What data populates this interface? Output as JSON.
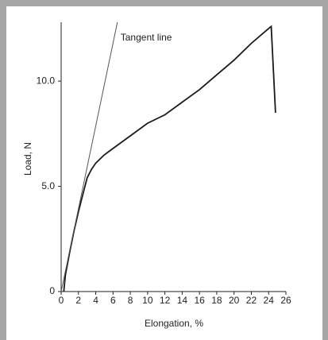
{
  "chart_data": {
    "type": "line",
    "x_label": "Elongation, %",
    "y_label": "Load, N",
    "series": [
      {
        "x": [
          0.3,
          0.5,
          1,
          1.5,
          2,
          2.5,
          3,
          3.5,
          4,
          5,
          6,
          8,
          10,
          12,
          14,
          16,
          18,
          20,
          22,
          24,
          24.3,
          24.8
        ],
        "values": [
          0,
          0.8,
          1.9,
          2.9,
          3.8,
          4.6,
          5.4,
          5.8,
          6.1,
          6.5,
          6.8,
          7.4,
          8.0,
          8.4,
          9.0,
          9.6,
          10.3,
          11.0,
          11.8,
          12.5,
          12.6,
          8.5
        ],
        "color": "#1a1a1a"
      },
      {
        "name": "Tangent line",
        "x": [
          0,
          6.5
        ],
        "values": [
          0,
          12.8
        ],
        "color": "#555555"
      }
    ],
    "xlim": [
      0,
      26
    ],
    "ylim": [
      0,
      12.8
    ],
    "xticks": [
      0,
      2,
      4,
      6,
      8,
      10,
      12,
      14,
      16,
      18,
      20,
      22,
      24,
      26
    ],
    "yticks": [
      0,
      {
        "value": 5,
        "label": "5.0"
      },
      {
        "value": 10,
        "label": "10.0"
      }
    ]
  }
}
